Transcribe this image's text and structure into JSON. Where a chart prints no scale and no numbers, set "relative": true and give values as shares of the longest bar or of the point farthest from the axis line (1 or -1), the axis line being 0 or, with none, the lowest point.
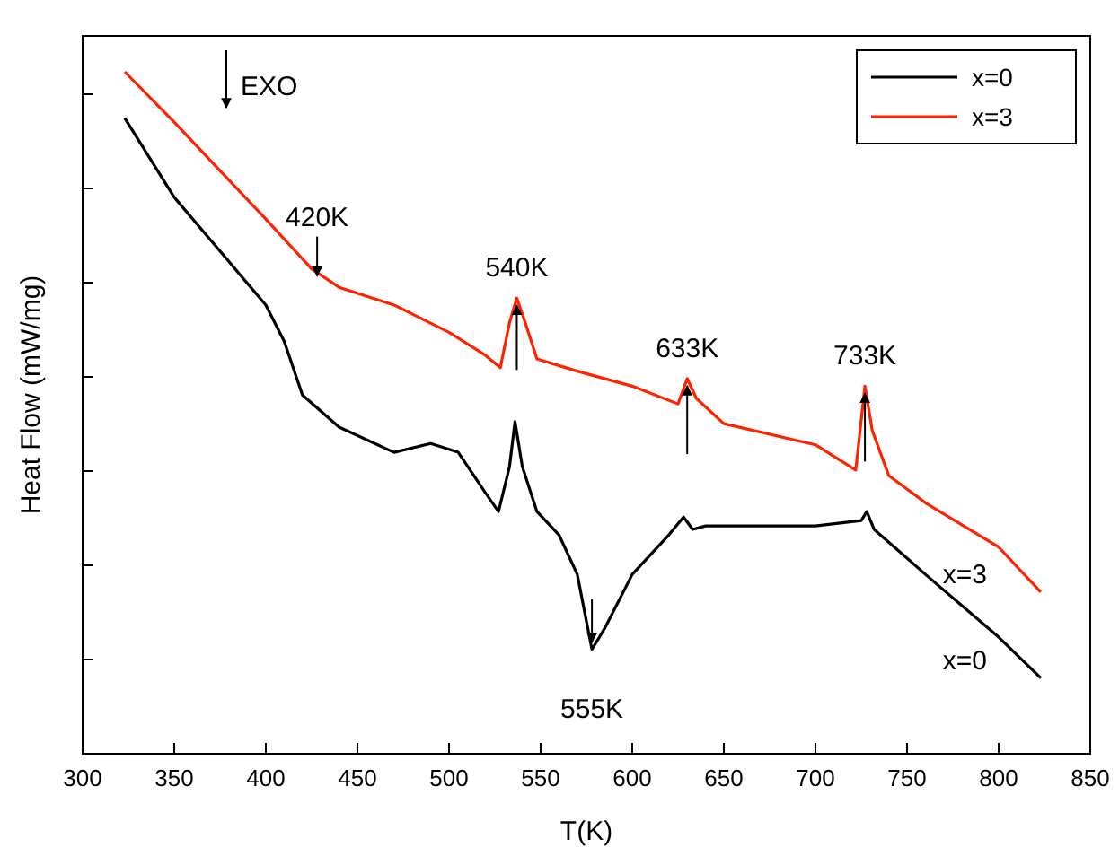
{
  "chart_data": {
    "type": "line",
    "relative": true,
    "xlabel": "T(K)",
    "ylabel": "Heat Flow (mW/mg)",
    "xlim": [
      300,
      850
    ],
    "xticks": [
      300,
      350,
      400,
      450,
      500,
      550,
      600,
      650,
      700,
      750,
      800,
      850
    ],
    "legend": "top right",
    "line_style": "solid",
    "marker": "none",
    "annotations": [
      "EXO",
      {
        "text": "420K",
        "x": 428,
        "y": 0.69
      },
      {
        "text": "540K",
        "x": 537,
        "y": 0.668
      },
      {
        "text": "633K",
        "x": 630,
        "y": 0.55
      },
      {
        "text": "733K",
        "x": 727,
        "y": 0.539
      },
      {
        "text": "555K",
        "x": 578,
        "y": 0.153
      }
    ],
    "series": [
      {
        "name": "x=0",
        "color": "#000000",
        "x": [
          323,
          350,
          400,
          410,
          420,
          440,
          470,
          490,
          505,
          520,
          527,
          533,
          536,
          540,
          548,
          560,
          570,
          578,
          585,
          600,
          620,
          628,
          633,
          640,
          700,
          725,
          728,
          732,
          760,
          800,
          823
        ],
        "values": [
          0.932,
          0.816,
          0.658,
          0.605,
          0.526,
          0.479,
          0.442,
          0.455,
          0.442,
          0.382,
          0.355,
          0.421,
          0.487,
          0.421,
          0.355,
          0.321,
          0.263,
          0.153,
          0.184,
          0.263,
          0.321,
          0.347,
          0.329,
          0.334,
          0.334,
          0.342,
          0.355,
          0.329,
          0.263,
          0.171,
          0.111
        ]
      },
      {
        "name": "x=3",
        "color": "#ff2200",
        "x": [
          323,
          350,
          400,
          425,
          440,
          470,
          500,
          520,
          528,
          533,
          537,
          541,
          548,
          570,
          600,
          625,
          630,
          635,
          650,
          700,
          722,
          727,
          731,
          740,
          760,
          800,
          823
        ],
        "values": [
          1.0,
          0.926,
          0.784,
          0.711,
          0.684,
          0.658,
          0.618,
          0.584,
          0.566,
          0.632,
          0.668,
          0.637,
          0.579,
          0.561,
          0.539,
          0.513,
          0.55,
          0.521,
          0.484,
          0.453,
          0.416,
          0.539,
          0.474,
          0.408,
          0.368,
          0.303,
          0.237
        ]
      }
    ]
  }
}
